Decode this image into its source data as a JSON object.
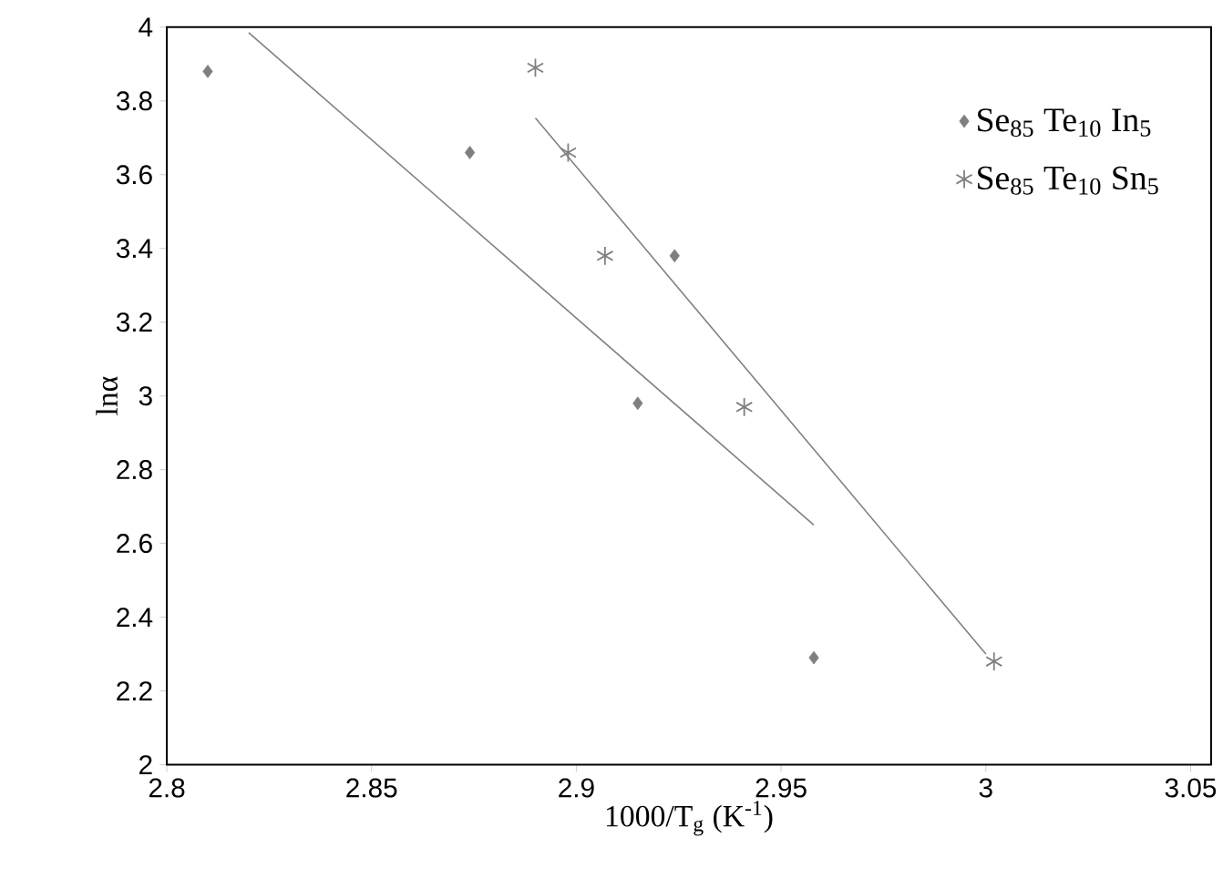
{
  "chart_data": {
    "type": "scatter",
    "xlabel": "1000/T$_{g}$ (K$^{-1}$)",
    "ylabel": "lnα",
    "xlim": [
      2.8,
      3.055
    ],
    "ylim": [
      2,
      4
    ],
    "xticks": [
      2.8,
      2.85,
      2.9,
      2.95,
      3,
      3.05
    ],
    "yticks": [
      2,
      2.2,
      2.4,
      2.6,
      2.8,
      3,
      3.2,
      3.4,
      3.6,
      3.8,
      4
    ],
    "legend": "top right",
    "series": [
      {
        "name": "Se$_{85}$ Te$_{10}$ In$_{5}$",
        "marker": "diamond",
        "color": "#7f7f7f",
        "x": [
          2.81,
          2.874,
          2.915,
          2.924,
          2.958
        ],
        "values": [
          3.88,
          3.66,
          2.98,
          3.38,
          2.29
        ]
      },
      {
        "name": "Se$_{85}$ Te$_{10}$ Sn$_{5}$",
        "marker": "cross",
        "color": "#7f7f7f",
        "x": [
          2.89,
          2.898,
          2.907,
          2.941,
          3.002
        ],
        "values": [
          3.89,
          3.66,
          3.38,
          2.97,
          2.28
        ]
      },
      {
        "type": "line",
        "marker": "none",
        "line_style": "solid",
        "color": "#808080",
        "x": [
          2.82,
          2.958
        ],
        "values": [
          3.985,
          2.65
        ]
      },
      {
        "type": "line",
        "marker": "none",
        "line_style": "solid",
        "color": "#808080",
        "x": [
          2.89,
          3.0
        ],
        "values": [
          3.754,
          2.3
        ]
      }
    ]
  }
}
